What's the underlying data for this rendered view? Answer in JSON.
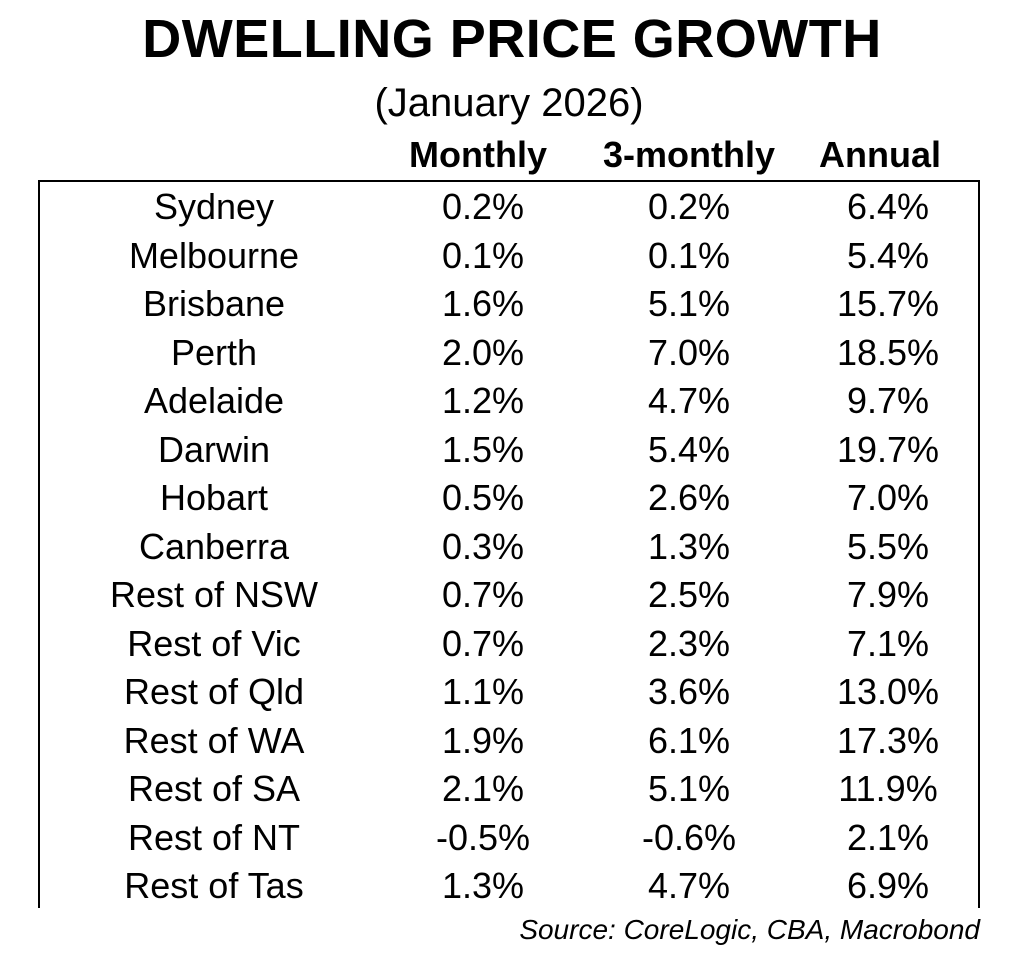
{
  "chart_data": {
    "type": "table",
    "title": "DWELLING PRICE GROWTH",
    "subtitle": "(January 2026)",
    "columns": [
      "Monthly",
      "3-monthly",
      "Annual"
    ],
    "rows": [
      {
        "region": "Sydney",
        "monthly": "0.2%",
        "three_monthly": "0.2%",
        "annual": "6.4%"
      },
      {
        "region": "Melbourne",
        "monthly": "0.1%",
        "three_monthly": "0.1%",
        "annual": "5.4%"
      },
      {
        "region": "Brisbane",
        "monthly": "1.6%",
        "three_monthly": "5.1%",
        "annual": "15.7%"
      },
      {
        "region": "Perth",
        "monthly": "2.0%",
        "three_monthly": "7.0%",
        "annual": "18.5%"
      },
      {
        "region": "Adelaide",
        "monthly": "1.2%",
        "three_monthly": "4.7%",
        "annual": "9.7%"
      },
      {
        "region": "Darwin",
        "monthly": "1.5%",
        "three_monthly": "5.4%",
        "annual": "19.7%"
      },
      {
        "region": "Hobart",
        "monthly": "0.5%",
        "three_monthly": "2.6%",
        "annual": "7.0%"
      },
      {
        "region": "Canberra",
        "monthly": "0.3%",
        "three_monthly": "1.3%",
        "annual": "5.5%"
      },
      {
        "region": "Rest of NSW",
        "monthly": "0.7%",
        "three_monthly": "2.5%",
        "annual": "7.9%"
      },
      {
        "region": "Rest of Vic",
        "monthly": "0.7%",
        "three_monthly": "2.3%",
        "annual": "7.1%"
      },
      {
        "region": "Rest of Qld",
        "monthly": "1.1%",
        "three_monthly": "3.6%",
        "annual": "13.0%"
      },
      {
        "region": "Rest of WA",
        "monthly": "1.9%",
        "three_monthly": "6.1%",
        "annual": "17.3%"
      },
      {
        "region": "Rest of SA",
        "monthly": "2.1%",
        "three_monthly": "5.1%",
        "annual": "11.9%"
      },
      {
        "region": "Rest of NT",
        "monthly": "-0.5%",
        "three_monthly": "-0.6%",
        "annual": "2.1%"
      },
      {
        "region": "Rest of Tas",
        "monthly": "1.3%",
        "three_monthly": "4.7%",
        "annual": "6.9%"
      }
    ],
    "source": "Source: CoreLogic, CBA, Macrobond"
  }
}
